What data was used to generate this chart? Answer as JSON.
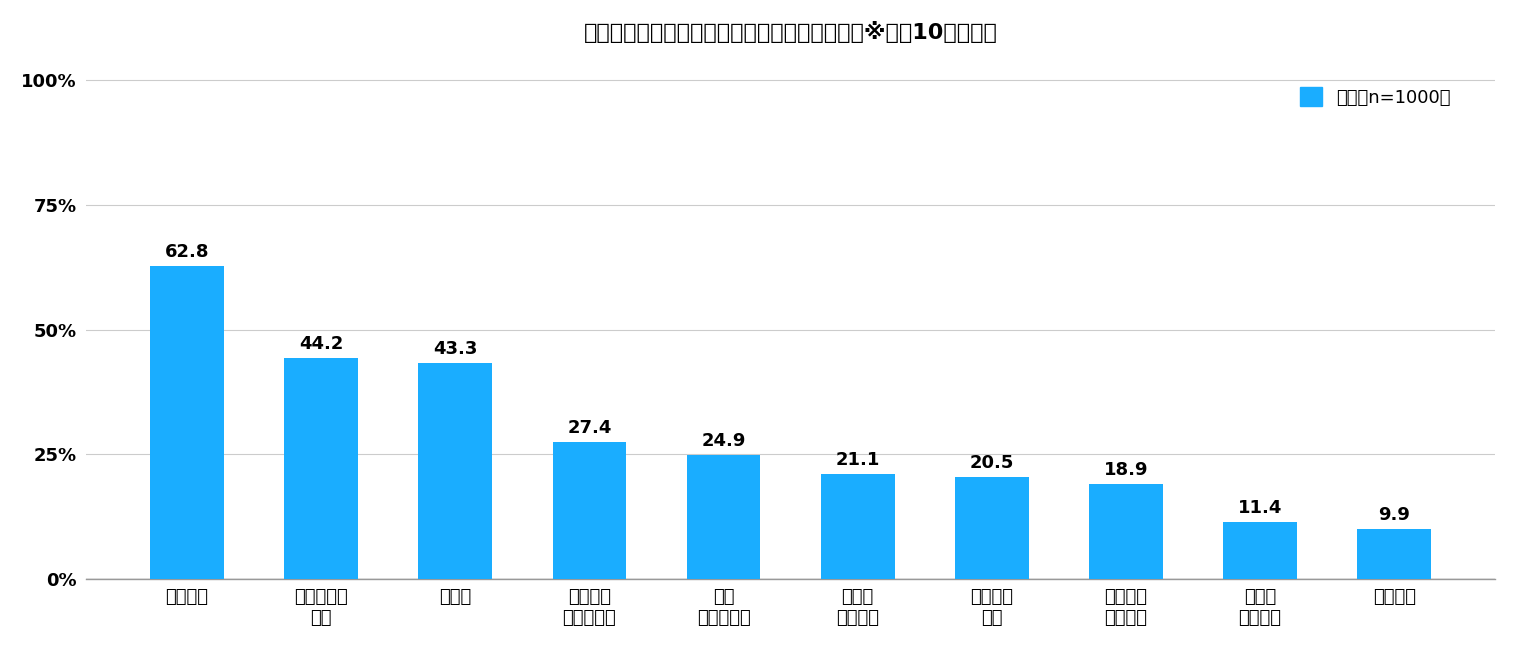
{
  "title": "《ブンデスリーガ関連で接触している情報》　※上位10位を抜粋",
  "categories": [
    "試合結果",
    "ハイライト\n動画",
    "順位表",
    "スーパー\nプレイ動画",
    "得点\nランキング",
    "選手の\n個人成績",
    "スタメン\n情報",
    "試合後の\n選手採点",
    "選手の\n移籍情報",
    "練習風景"
  ],
  "values": [
    62.8,
    44.2,
    43.3,
    27.4,
    24.9,
    21.1,
    20.5,
    18.9,
    11.4,
    9.9
  ],
  "bar_color": "#1AADFF",
  "yticks": [
    0,
    25,
    50,
    75,
    100
  ],
  "ytick_labels": [
    "0%",
    "25%",
    "50%",
    "75%",
    "100%"
  ],
  "ylim": [
    0,
    105
  ],
  "legend_label": "全体【n=1000】",
  "legend_color": "#1AADFF",
  "background_color": "#FFFFFF",
  "grid_color": "#CCCCCC",
  "title_fontsize": 16,
  "bar_label_fontsize": 13,
  "tick_fontsize": 13,
  "legend_fontsize": 13
}
